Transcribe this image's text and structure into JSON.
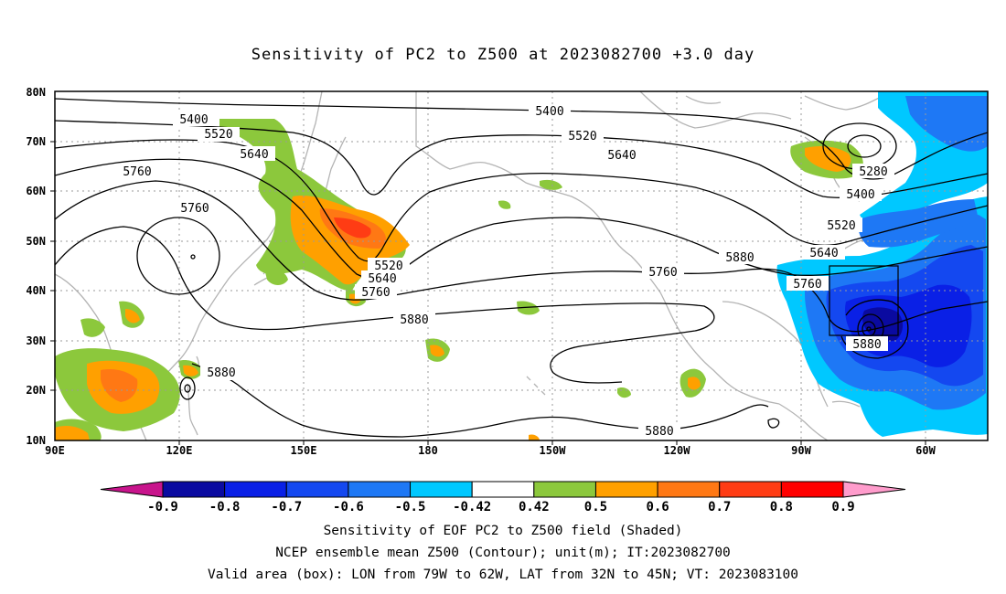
{
  "title": "Sensitivity of PC2 to Z500 at 2023082700 +3.0 day",
  "map": {
    "lat_ticks": [
      "80N",
      "70N",
      "60N",
      "50N",
      "40N",
      "30N",
      "20N",
      "10N"
    ],
    "lon_ticks": [
      "90E",
      "120E",
      "150E",
      "180",
      "150W",
      "120W",
      "90W",
      "60W"
    ],
    "extent": {
      "lon_min": 90,
      "lon_max": 315,
      "lat_min": 10,
      "lat_max": 80
    },
    "contour_labels": [
      "5400",
      "5520",
      "5640",
      "5760",
      "5880",
      "5280"
    ],
    "colors": {
      "coast": "#b4b4b4",
      "grid": "#9a9a9a",
      "contour": "#000000"
    }
  },
  "box": {
    "lon_w": "79W",
    "lon_e": "62W",
    "lat_s": "32N",
    "lat_n": "45N"
  },
  "colorbar": {
    "labels": [
      "-0.9",
      "-0.8",
      "-0.7",
      "-0.6",
      "-0.5",
      "-0.42",
      "0.42",
      "0.5",
      "0.6",
      "0.7",
      "0.8",
      "0.9"
    ],
    "colors": [
      "#c8148c",
      "#0a0aa0",
      "#0a20e6",
      "#1448f0",
      "#1e78f5",
      "#00c8ff",
      "#ffffff",
      "#8cc83c",
      "#ffa000",
      "#ff7814",
      "#ff3c14",
      "#ff0000",
      "#ff9ccc"
    ]
  },
  "captions": {
    "line1": "Sensitivity of EOF PC2 to Z500 field (Shaded)",
    "line2": "NCEP ensemble mean Z500 (Contour); unit(m); IT:2023082700",
    "line3": "Valid area (box): LON from 79W to 62W, LAT from 32N to 45N; VT: 2023083100"
  }
}
